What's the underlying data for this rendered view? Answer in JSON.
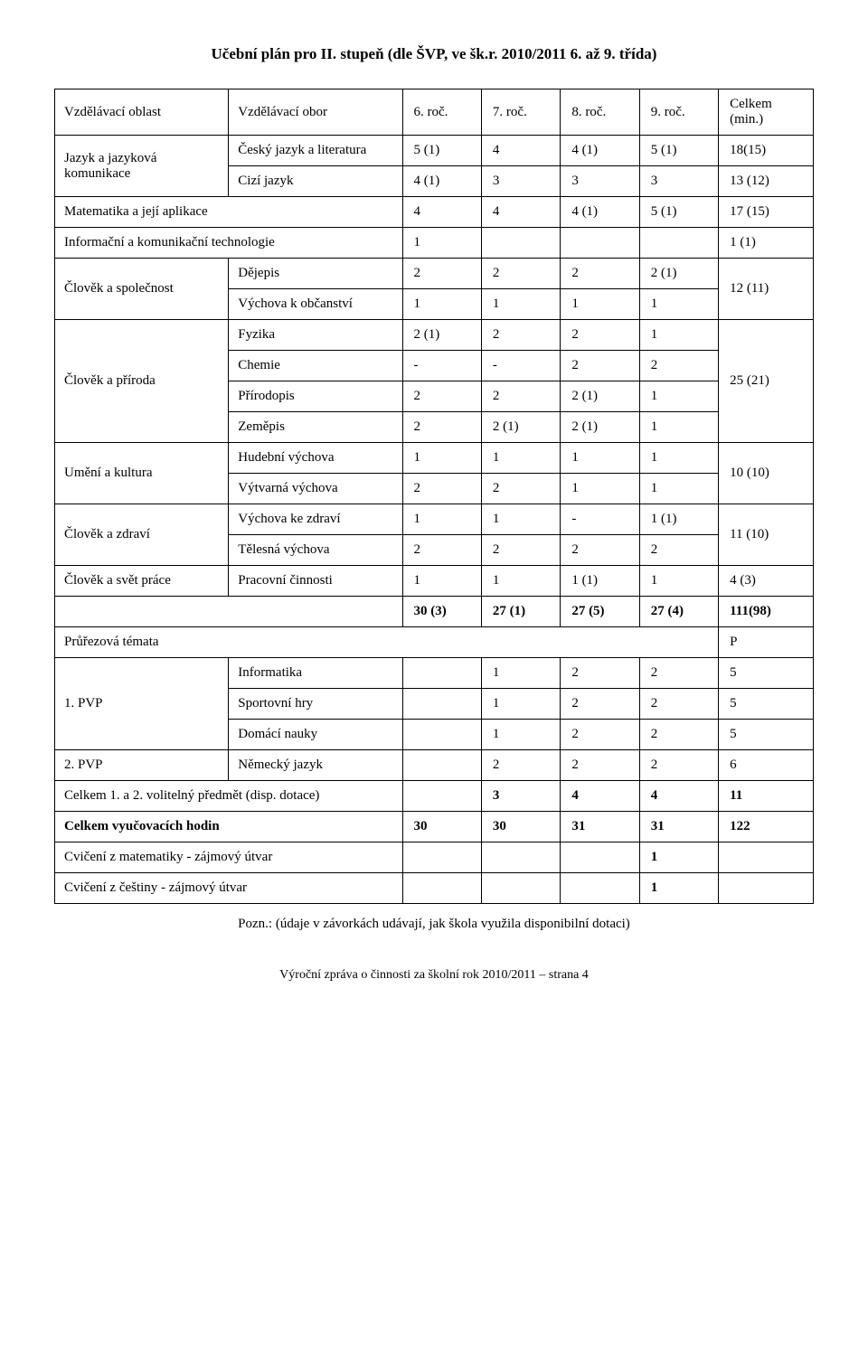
{
  "title": "Učební plán pro II. stupeň (dle ŠVP, ve šk.r. 2010/2011  6. až 9. třída)",
  "header": {
    "area": "Vzdělávací oblast",
    "subject": "Vzdělávací obor",
    "g6": "6. roč.",
    "g7": "7. roč.",
    "g8": "8. roč.",
    "g9": "9. roč.",
    "total": "Celkem (min.)"
  },
  "r_lang": {
    "area": "Jazyk a jazyková komunikace",
    "czech": {
      "label": "Český jazyk a literatura",
      "g6": "5 (1)",
      "g7": "4",
      "g8": "4 (1)",
      "g9": "5 (1)",
      "total": "18(15)"
    },
    "foreign": {
      "label": "Cizí jazyk",
      "g6": "4 (1)",
      "g7": "3",
      "g8": "3",
      "g9": "3",
      "total": "13 (12)"
    }
  },
  "r_math": {
    "label": "Matematika a její aplikace",
    "g6": "4",
    "g7": "4",
    "g8": "4 (1)",
    "g9": "5 (1)",
    "total": "17 (15)"
  },
  "r_ict": {
    "label": "Informační a komunikační technologie",
    "g6": "1",
    "g7": "",
    "g8": "",
    "g9": "",
    "total": "1 (1)"
  },
  "r_society": {
    "area": "Člověk a společnost",
    "dejepis": {
      "label": "Dějepis",
      "g6": "2",
      "g7": "2",
      "g8": "2",
      "g9": "2 (1)"
    },
    "obcan": {
      "label": "Výchova k občanství",
      "g6": "1",
      "g7": "1",
      "g8": "1",
      "g9": "1"
    },
    "total": "12 (11)"
  },
  "r_nature": {
    "area": "Člověk a příroda",
    "fyzika": {
      "label": "Fyzika",
      "g6": "2 (1)",
      "g7": "2",
      "g8": "2",
      "g9": "1"
    },
    "chemie": {
      "label": "Chemie",
      "g6": "-",
      "g7": "-",
      "g8": "2",
      "g9": "2"
    },
    "prirodopis": {
      "label": "Přírodopis",
      "g6": "2",
      "g7": "2",
      "g8": "2 (1)",
      "g9": "1"
    },
    "zemepis": {
      "label": "Zeměpis",
      "g6": "2",
      "g7": "2 (1)",
      "g8": "2 (1)",
      "g9": "1"
    },
    "total": "25 (21)"
  },
  "r_art": {
    "area": "Umění a kultura",
    "hudebni": {
      "label": "Hudební výchova",
      "g6": "1",
      "g7": "1",
      "g8": "1",
      "g9": "1"
    },
    "vytvarna": {
      "label": "Výtvarná výchova",
      "g6": "2",
      "g7": "2",
      "g8": "1",
      "g9": "1"
    },
    "total": "10 (10)"
  },
  "r_health": {
    "area": "Člověk a zdraví",
    "vkz": {
      "label": "Výchova ke zdraví",
      "g6": "1",
      "g7": "1",
      "g8": "-",
      "g9": "1 (1)"
    },
    "telesna": {
      "label": "Tělesná výchova",
      "g6": "2",
      "g7": "2",
      "g8": "2",
      "g9": "2"
    },
    "total": "11 (10)"
  },
  "r_work": {
    "area": "Člověk a svět práce",
    "label": "Pracovní činnosti",
    "g6": "1",
    "g7": "1",
    "g8": "1 (1)",
    "g9": "1",
    "total": "4 (3)"
  },
  "sumrow": {
    "g6": "30 (3)",
    "g7": "27 (1)",
    "g8": "27 (5)",
    "g9": "27 (4)",
    "total": "111(98)"
  },
  "prurez": {
    "label": "Průřezová témata",
    "total": "P"
  },
  "bottom": {
    "pvp1": "1. PVP",
    "informatika": {
      "label": "Informatika",
      "g7": "1",
      "g8": "2",
      "g9": "2",
      "total": "5"
    },
    "sport": {
      "label": "Sportovní hry",
      "g7": "1",
      "g8": "2",
      "g9": "2",
      "total": "5"
    },
    "domaci": {
      "label": "Domácí nauky",
      "g7": "1",
      "g8": "2",
      "g9": "2",
      "total": "5"
    },
    "pvp2": "2. PVP",
    "nemecky": {
      "label": "Německý jazyk",
      "g7": "2",
      "g8": "2",
      "g9": "2",
      "total": "6"
    },
    "celkem_vol": {
      "label": "Celkem 1. a 2. volitelný předmět (disp. dotace)",
      "g7": "3",
      "g8": "4",
      "g9": "4",
      "total": "11"
    },
    "celkem_hod": {
      "label": "Celkem vyučovacích hodin",
      "g6": "30",
      "g7": "30",
      "g8": "31",
      "g9": "31",
      "total": "122"
    },
    "cvic_mat": {
      "label": "Cvičení z matematiky  - zájmový útvar",
      "g9": "1"
    },
    "cvic_cj": {
      "label": "Cvičení z češtiny - zájmový útvar",
      "g9": "1"
    }
  },
  "footnote": "Pozn.: (údaje v závorkách udávají, jak škola využila disponibilní dotaci)",
  "pagefooter": "Výroční zpráva o činnosti za školní rok  2010/2011 – strana 4"
}
